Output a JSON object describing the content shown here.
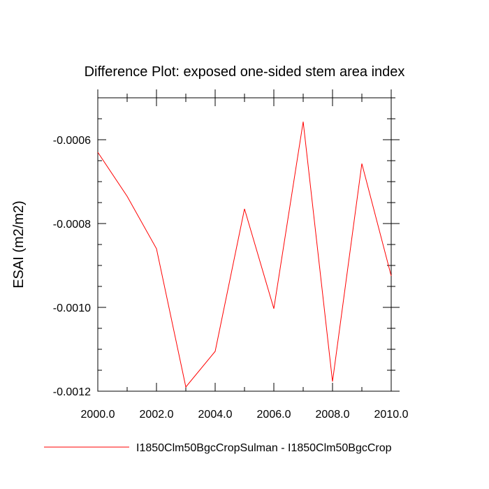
{
  "chart_data": {
    "type": "line",
    "title": "Difference Plot: exposed one-sided stem area index",
    "xlabel": "",
    "ylabel": "ESAI  (m2/m2)",
    "xlim": [
      2000,
      2010
    ],
    "ylim": [
      -0.0012,
      -0.0005
    ],
    "x_ticks": [
      2000,
      2002,
      2004,
      2006,
      2008,
      2010
    ],
    "x_tick_labels": [
      "2000.0",
      "2002.0",
      "2004.0",
      "2006.0",
      "2008.0",
      "2010.0"
    ],
    "y_ticks": [
      -0.0012,
      -0.001,
      -0.0008,
      -0.0006
    ],
    "y_tick_labels": [
      "-0.0012",
      "-0.0010",
      "-0.0008",
      "-0.0006"
    ],
    "grid": false,
    "legend_position": "bottom",
    "series": [
      {
        "name": "I1850Clm50BgcCropSulman - I1850Clm50BgcCrop",
        "color": "#ff0000",
        "x": [
          2000,
          2001,
          2002,
          2003,
          2004,
          2005,
          2006,
          2007,
          2008,
          2009,
          2010
        ],
        "y": [
          -0.00063,
          -0.000735,
          -0.00086,
          -0.00119,
          -0.001105,
          -0.000765,
          -0.001003,
          -0.000557,
          -0.001177,
          -0.000657,
          -0.000925
        ]
      }
    ]
  }
}
